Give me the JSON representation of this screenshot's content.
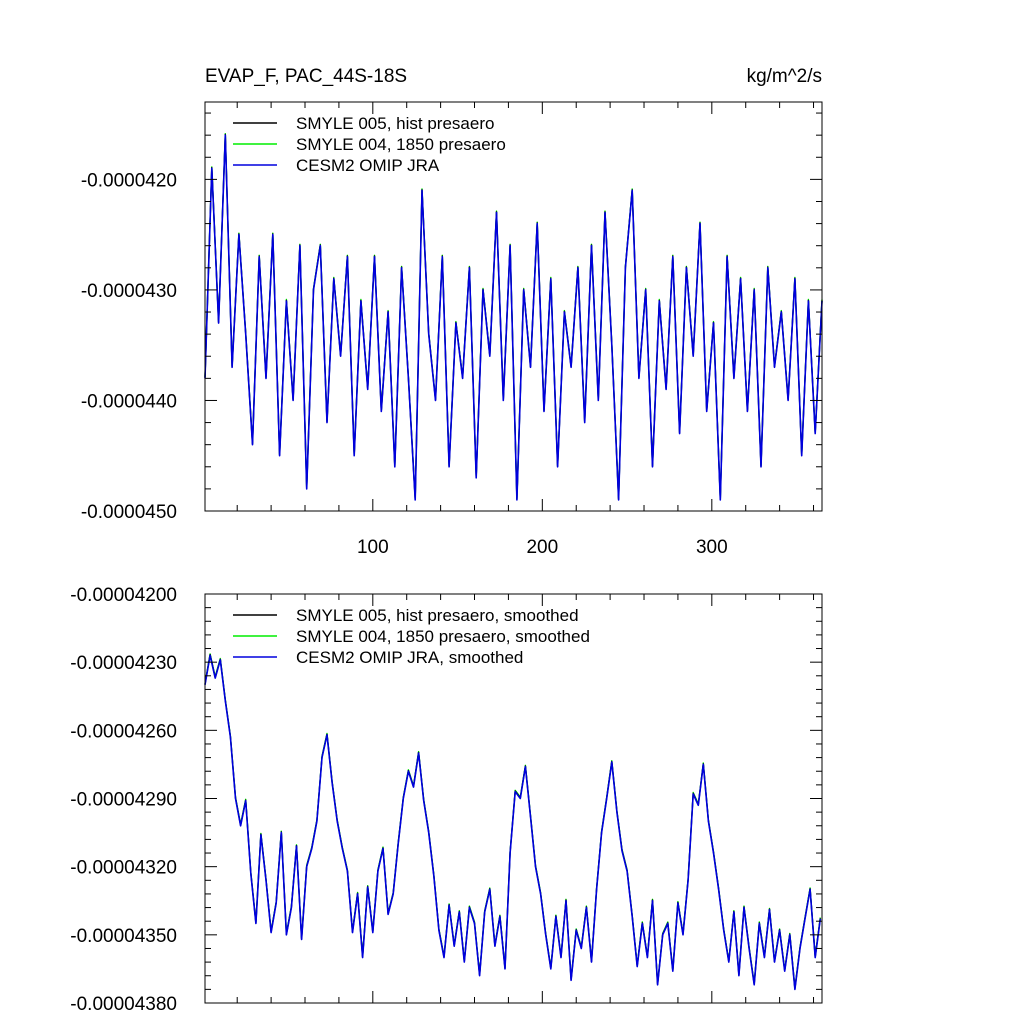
{
  "chart_data": [
    {
      "type": "line",
      "title_left": "EVAP_F, PAC_44S-18S",
      "title_right": "kg/m^2/s",
      "xlim": [
        1,
        365
      ],
      "ylim": [
        -4.5e-05,
        -4.13e-05
      ],
      "grid": false,
      "legend_placement": "top-left",
      "x_ticks": [
        100,
        200,
        300
      ],
      "x_tick_labels": [
        "100",
        "200",
        "300"
      ],
      "y_ticks": [
        -4.2e-05,
        -4.3e-05,
        -4.4e-05,
        -4.5e-05
      ],
      "y_tick_labels": [
        "-0.0000420",
        "-0.0000430",
        "-0.0000440",
        "-0.0000450"
      ],
      "series": [
        {
          "name": "SMYLE 005, hist presaero",
          "color": "#000000"
        },
        {
          "name": "SMYLE 004, 1850 presaero",
          "color": "#00ee00"
        },
        {
          "name": "CESM2 OMIP JRA",
          "color": "#0000dd"
        }
      ],
      "x": [
        1,
        5,
        9,
        13,
        17,
        21,
        25,
        29,
        33,
        37,
        41,
        45,
        49,
        53,
        57,
        61,
        65,
        69,
        73,
        77,
        81,
        85,
        89,
        93,
        97,
        101,
        105,
        109,
        113,
        117,
        121,
        125,
        129,
        133,
        137,
        141,
        145,
        149,
        153,
        157,
        161,
        165,
        169,
        173,
        177,
        181,
        185,
        189,
        193,
        197,
        201,
        205,
        209,
        213,
        217,
        221,
        225,
        229,
        233,
        237,
        241,
        245,
        249,
        253,
        257,
        261,
        265,
        269,
        273,
        277,
        281,
        285,
        289,
        293,
        297,
        301,
        305,
        309,
        313,
        317,
        321,
        325,
        329,
        333,
        337,
        341,
        345,
        349,
        353,
        357,
        361,
        365
      ],
      "values": [
        -4.38e-05,
        -4.19e-05,
        -4.33e-05,
        -4.16e-05,
        -4.37e-05,
        -4.25e-05,
        -4.34e-05,
        -4.44e-05,
        -4.27e-05,
        -4.38e-05,
        -4.25e-05,
        -4.45e-05,
        -4.31e-05,
        -4.4e-05,
        -4.26e-05,
        -4.48e-05,
        -4.3e-05,
        -4.26e-05,
        -4.42e-05,
        -4.29e-05,
        -4.36e-05,
        -4.27e-05,
        -4.45e-05,
        -4.31e-05,
        -4.39e-05,
        -4.27e-05,
        -4.41e-05,
        -4.32e-05,
        -4.46e-05,
        -4.28e-05,
        -4.38e-05,
        -4.49e-05,
        -4.21e-05,
        -4.34e-05,
        -4.4e-05,
        -4.27e-05,
        -4.46e-05,
        -4.33e-05,
        -4.38e-05,
        -4.28e-05,
        -4.47e-05,
        -4.3e-05,
        -4.36e-05,
        -4.23e-05,
        -4.4e-05,
        -4.26e-05,
        -4.49e-05,
        -4.3e-05,
        -4.37e-05,
        -4.24e-05,
        -4.41e-05,
        -4.29e-05,
        -4.46e-05,
        -4.32e-05,
        -4.37e-05,
        -4.28e-05,
        -4.42e-05,
        -4.26e-05,
        -4.4e-05,
        -4.23e-05,
        -4.35e-05,
        -4.49e-05,
        -4.28e-05,
        -4.21e-05,
        -4.38e-05,
        -4.3e-05,
        -4.46e-05,
        -4.31e-05,
        -4.39e-05,
        -4.27e-05,
        -4.43e-05,
        -4.28e-05,
        -4.36e-05,
        -4.24e-05,
        -4.41e-05,
        -4.33e-05,
        -4.49e-05,
        -4.27e-05,
        -4.38e-05,
        -4.29e-05,
        -4.41e-05,
        -4.3e-05,
        -4.46e-05,
        -4.28e-05,
        -4.37e-05,
        -4.32e-05,
        -4.4e-05,
        -4.29e-05,
        -4.45e-05,
        -4.31e-05,
        -4.43e-05,
        -4.31e-05
      ]
    },
    {
      "type": "line",
      "xlim": [
        1,
        365
      ],
      "ylim": [
        -4.38e-05,
        -4.2e-05
      ],
      "grid": false,
      "legend_placement": "top-left",
      "y_ticks": [
        -4.2e-05,
        -4.23e-05,
        -4.26e-05,
        -4.29e-05,
        -4.32e-05,
        -4.35e-05,
        -4.38e-05
      ],
      "y_tick_labels": [
        "-0.00004200",
        "-0.00004230",
        "-0.00004260",
        "-0.00004290",
        "-0.00004320",
        "-0.00004350",
        "-0.00004380"
      ],
      "series": [
        {
          "name": "SMYLE 005, hist presaero, smoothed",
          "color": "#000000"
        },
        {
          "name": "SMYLE 004, 1850 presaero, smoothed",
          "color": "#00ee00"
        },
        {
          "name": "CESM2 OMIP JRA, smoothed",
          "color": "#0000dd"
        }
      ],
      "x": [
        1,
        4,
        7,
        10,
        13,
        16,
        19,
        22,
        25,
        28,
        31,
        34,
        37,
        40,
        43,
        46,
        49,
        52,
        55,
        58,
        61,
        64,
        67,
        70,
        73,
        76,
        79,
        82,
        85,
        88,
        91,
        94,
        97,
        100,
        103,
        106,
        109,
        112,
        115,
        118,
        121,
        124,
        127,
        130,
        133,
        136,
        139,
        142,
        145,
        148,
        151,
        154,
        157,
        160,
        163,
        166,
        169,
        172,
        175,
        178,
        181,
        184,
        187,
        190,
        193,
        196,
        199,
        202,
        205,
        208,
        211,
        214,
        217,
        220,
        223,
        226,
        229,
        232,
        235,
        238,
        241,
        244,
        247,
        250,
        253,
        256,
        259,
        262,
        265,
        268,
        271,
        274,
        277,
        280,
        283,
        286,
        289,
        292,
        295,
        298,
        301,
        304,
        307,
        310,
        313,
        316,
        319,
        322,
        325,
        328,
        331,
        334,
        337,
        340,
        343,
        346,
        349,
        352,
        355,
        358,
        361,
        364
      ],
      "values": [
        -4.24e-05,
        -4.227e-05,
        -4.237e-05,
        -4.229e-05,
        -4.247e-05,
        -4.263e-05,
        -4.29e-05,
        -4.302e-05,
        -4.291e-05,
        -4.323e-05,
        -4.345e-05,
        -4.306e-05,
        -4.326e-05,
        -4.349e-05,
        -4.336e-05,
        -4.305e-05,
        -4.35e-05,
        -4.338e-05,
        -4.311e-05,
        -4.352e-05,
        -4.32e-05,
        -4.312e-05,
        -4.3e-05,
        -4.272e-05,
        -4.262e-05,
        -4.283e-05,
        -4.3e-05,
        -4.312e-05,
        -4.322e-05,
        -4.349e-05,
        -4.332e-05,
        -4.36e-05,
        -4.329e-05,
        -4.349e-05,
        -4.322e-05,
        -4.312e-05,
        -4.341e-05,
        -4.332e-05,
        -4.31e-05,
        -4.29e-05,
        -4.278e-05,
        -4.285e-05,
        -4.27e-05,
        -4.291e-05,
        -4.305e-05,
        -4.324e-05,
        -4.348e-05,
        -4.36e-05,
        -4.337e-05,
        -4.355e-05,
        -4.34e-05,
        -4.362e-05,
        -4.338e-05,
        -4.345e-05,
        -4.368e-05,
        -4.34e-05,
        -4.33e-05,
        -4.355e-05,
        -4.342e-05,
        -4.365e-05,
        -4.314e-05,
        -4.287e-05,
        -4.29e-05,
        -4.276e-05,
        -4.298e-05,
        -4.32e-05,
        -4.332e-05,
        -4.35e-05,
        -4.365e-05,
        -4.342e-05,
        -4.36e-05,
        -4.335e-05,
        -4.37e-05,
        -4.348e-05,
        -4.356e-05,
        -4.338e-05,
        -4.362e-05,
        -4.33e-05,
        -4.305e-05,
        -4.29e-05,
        -4.274e-05,
        -4.296e-05,
        -4.313e-05,
        -4.322e-05,
        -4.342e-05,
        -4.364e-05,
        -4.345e-05,
        -4.36e-05,
        -4.335e-05,
        -4.372e-05,
        -4.35e-05,
        -4.345e-05,
        -4.366e-05,
        -4.336e-05,
        -4.35e-05,
        -4.326e-05,
        -4.288e-05,
        -4.293e-05,
        -4.275e-05,
        -4.3e-05,
        -4.314e-05,
        -4.33e-05,
        -4.348e-05,
        -4.362e-05,
        -4.34e-05,
        -4.368e-05,
        -4.338e-05,
        -4.356e-05,
        -4.372e-05,
        -4.345e-05,
        -4.36e-05,
        -4.339e-05,
        -4.362e-05,
        -4.348e-05,
        -4.366e-05,
        -4.35e-05,
        -4.374e-05,
        -4.356e-05,
        -4.343e-05,
        -4.33e-05,
        -4.36e-05,
        -4.343e-05
      ]
    }
  ]
}
